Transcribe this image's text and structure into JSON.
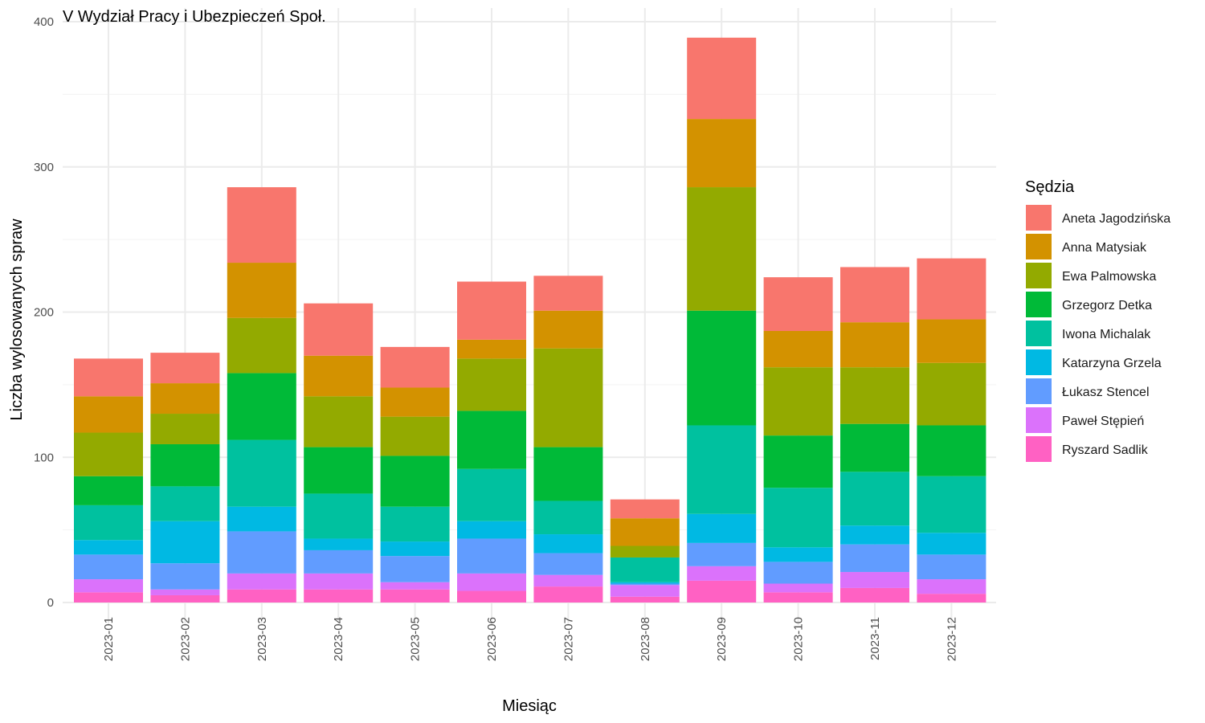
{
  "chart_data": {
    "type": "bar",
    "stacked": true,
    "title": "V Wydział Pracy i Ubezpieczeń Społ.",
    "xlabel": "Miesiąc",
    "ylabel": "Liczba wylosowanych spraw",
    "ylim": [
      0,
      400
    ],
    "yticks": [
      0,
      100,
      200,
      300,
      400
    ],
    "grid": true,
    "legend_position": "right",
    "legend_title": "Sędzia",
    "categories": [
      "2023-01",
      "2023-02",
      "2023-03",
      "2023-04",
      "2023-05",
      "2023-06",
      "2023-07",
      "2023-08",
      "2023-09",
      "2023-10",
      "2023-11",
      "2023-12"
    ],
    "series": [
      {
        "name": "Aneta Jagodzińska",
        "color": "#F8766D",
        "values": [
          26,
          21,
          52,
          36,
          28,
          40,
          24,
          13,
          56,
          37,
          38,
          42
        ]
      },
      {
        "name": "Anna Matysiak",
        "color": "#D39200",
        "values": [
          25,
          21,
          38,
          28,
          20,
          13,
          26,
          19,
          47,
          25,
          31,
          30
        ]
      },
      {
        "name": "Ewa Palmowska",
        "color": "#93AA00",
        "values": [
          30,
          21,
          38,
          35,
          27,
          36,
          68,
          8,
          85,
          47,
          39,
          43
        ]
      },
      {
        "name": "Grzegorz Detka",
        "color": "#00BA38",
        "values": [
          20,
          29,
          46,
          32,
          35,
          40,
          37,
          0,
          79,
          36,
          33,
          35
        ]
      },
      {
        "name": "Iwona Michalak",
        "color": "#00C19F",
        "values": [
          24,
          24,
          46,
          31,
          24,
          36,
          23,
          17,
          61,
          41,
          37,
          39
        ]
      },
      {
        "name": "Katarzyna Grzela",
        "color": "#00B9E3",
        "values": [
          10,
          29,
          17,
          8,
          10,
          12,
          13,
          1,
          20,
          10,
          13,
          15
        ]
      },
      {
        "name": "Łukasz Stencel",
        "color": "#619CFF",
        "values": [
          17,
          18,
          29,
          16,
          18,
          24,
          15,
          1,
          16,
          15,
          19,
          17
        ]
      },
      {
        "name": "Paweł Stępień",
        "color": "#DB72FB",
        "values": [
          9,
          4,
          11,
          11,
          5,
          12,
          8,
          8,
          10,
          6,
          11,
          10
        ]
      },
      {
        "name": "Ryszard Sadlik",
        "color": "#FF61C3",
        "values": [
          7,
          5,
          9,
          9,
          9,
          8,
          11,
          4,
          15,
          7,
          10,
          6
        ]
      }
    ]
  }
}
